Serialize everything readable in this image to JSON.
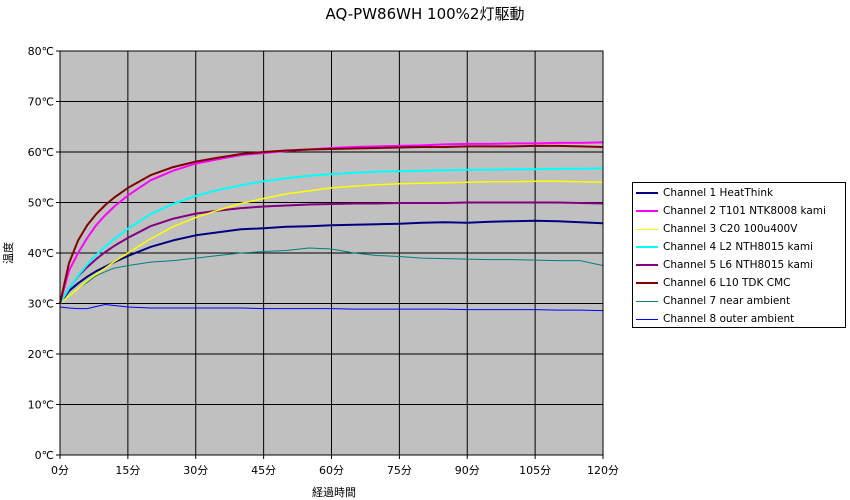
{
  "chart_data": {
    "type": "line",
    "title": "AQ-PW86WH 100%2灯駆動",
    "xlabel": "経過時間",
    "ylabel": "温度",
    "xlim": [
      0,
      120
    ],
    "ylim": [
      0,
      80
    ],
    "x_ticks": [
      "0分",
      "15分",
      "30分",
      "45分",
      "60分",
      "75分",
      "90分",
      "105分",
      "120分"
    ],
    "y_ticks": [
      "0℃",
      "10℃",
      "20℃",
      "30℃",
      "40℃",
      "50℃",
      "60℃",
      "70℃",
      "80℃"
    ],
    "grid": true,
    "legend_position": "right",
    "plot_background": "#c0c0c0",
    "x": [
      0,
      2,
      4,
      6,
      8,
      10,
      12,
      15,
      20,
      25,
      30,
      35,
      40,
      45,
      50,
      55,
      60,
      65,
      70,
      75,
      80,
      85,
      90,
      95,
      100,
      105,
      110,
      115,
      120
    ],
    "series": [
      {
        "name": "Channel 1  HeatThink",
        "color": "#000080",
        "width": 2,
        "values": [
          30.0,
          32.5,
          34.0,
          35.3,
          36.4,
          37.3,
          38.2,
          39.4,
          41.2,
          42.5,
          43.5,
          44.1,
          44.7,
          44.9,
          45.2,
          45.3,
          45.5,
          45.6,
          45.7,
          45.8,
          46.0,
          46.1,
          46.0,
          46.2,
          46.3,
          46.4,
          46.3,
          46.1,
          45.9
        ]
      },
      {
        "name": "Channel 2  T101 NTK8008 kami",
        "color": "#ff00ff",
        "width": 2,
        "values": [
          30.0,
          36.5,
          40.0,
          43.0,
          45.5,
          47.5,
          49.2,
          51.4,
          54.4,
          56.3,
          57.7,
          58.6,
          59.4,
          59.8,
          60.2,
          60.5,
          60.8,
          61.0,
          61.1,
          61.2,
          61.3,
          61.5,
          61.6,
          61.6,
          61.7,
          61.7,
          61.8,
          61.8,
          61.9
        ]
      },
      {
        "name": "Channel 3  C20 100u400V",
        "color": "#ffff00",
        "width": 1.5,
        "values": [
          30.0,
          31.5,
          33.0,
          34.5,
          35.8,
          37.0,
          38.3,
          40.0,
          42.8,
          45.2,
          47.0,
          48.5,
          49.8,
          50.8,
          51.7,
          52.3,
          52.9,
          53.2,
          53.5,
          53.7,
          53.8,
          53.9,
          54.0,
          54.1,
          54.1,
          54.2,
          54.2,
          54.1,
          54.0
        ]
      },
      {
        "name": "Channel 4  L2 NTH8015 kami",
        "color": "#00ffff",
        "width": 2,
        "values": [
          30.0,
          33.0,
          35.5,
          37.7,
          39.6,
          41.3,
          42.8,
          44.8,
          47.7,
          49.7,
          51.3,
          52.5,
          53.4,
          54.2,
          54.8,
          55.3,
          55.6,
          55.9,
          56.1,
          56.2,
          56.3,
          56.4,
          56.5,
          56.5,
          56.6,
          56.6,
          56.7,
          56.7,
          56.8
        ]
      },
      {
        "name": "Channel 5  L6 NTH8015 kami",
        "color": "#800080",
        "width": 2,
        "values": [
          30.0,
          33.0,
          35.4,
          37.2,
          38.8,
          40.2,
          41.4,
          43.0,
          45.3,
          46.8,
          47.8,
          48.4,
          48.9,
          49.2,
          49.4,
          49.6,
          49.7,
          49.8,
          49.8,
          49.9,
          49.9,
          49.9,
          50.0,
          50.0,
          50.0,
          50.0,
          50.0,
          49.9,
          49.8
        ]
      },
      {
        "name": "Channel 6  L10 TDK CMC",
        "color": "#800000",
        "width": 2,
        "values": [
          30.0,
          38.0,
          42.5,
          45.5,
          47.7,
          49.5,
          51.0,
          52.9,
          55.4,
          57.0,
          58.1,
          58.9,
          59.6,
          60.0,
          60.3,
          60.5,
          60.6,
          60.7,
          60.8,
          60.9,
          61.0,
          61.0,
          61.1,
          61.1,
          61.1,
          61.2,
          61.2,
          61.1,
          61.0
        ]
      },
      {
        "name": "Channel 7  near ambient",
        "color": "#008080",
        "width": 1,
        "values": [
          30.0,
          31.5,
          33.0,
          34.2,
          35.5,
          36.3,
          37.0,
          37.5,
          38.2,
          38.5,
          39.0,
          39.5,
          40.0,
          40.3,
          40.5,
          41.0,
          40.8,
          40.0,
          39.5,
          39.3,
          39.0,
          38.9,
          38.8,
          38.7,
          38.7,
          38.6,
          38.5,
          38.5,
          37.5
        ]
      },
      {
        "name": "Channel 8  outer ambient",
        "color": "#0000ff",
        "width": 1,
        "values": [
          29.3,
          29.1,
          29.0,
          29.0,
          29.4,
          29.8,
          29.6,
          29.3,
          29.1,
          29.1,
          29.1,
          29.1,
          29.1,
          29.0,
          29.0,
          29.0,
          29.0,
          28.9,
          28.9,
          28.9,
          28.9,
          28.9,
          28.8,
          28.8,
          28.8,
          28.8,
          28.7,
          28.7,
          28.6
        ]
      }
    ]
  }
}
